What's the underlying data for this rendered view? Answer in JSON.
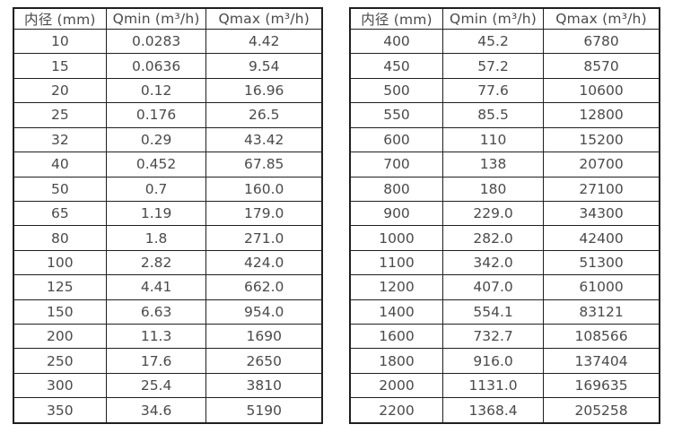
{
  "page": {
    "background": "#ffffff",
    "text_color": "#4a4a4a",
    "border_color": "#1f1f1f"
  },
  "table_left": {
    "headers": [
      "内径 (mm)",
      "Qmin (m³/h)",
      "Qmax (m³/h)"
    ],
    "rows": [
      [
        "10",
        "0.0283",
        "4.42"
      ],
      [
        "15",
        "0.0636",
        "9.54"
      ],
      [
        "20",
        "0.12",
        "16.96"
      ],
      [
        "25",
        "0.176",
        "26.5"
      ],
      [
        "32",
        "0.29",
        "43.42"
      ],
      [
        "40",
        "0.452",
        "67.85"
      ],
      [
        "50",
        "0.7",
        "160.0"
      ],
      [
        "65",
        "1.19",
        "179.0"
      ],
      [
        "80",
        "1.8",
        "271.0"
      ],
      [
        "100",
        "2.82",
        "424.0"
      ],
      [
        "125",
        "4.41",
        "662.0"
      ],
      [
        "150",
        "6.63",
        "954.0"
      ],
      [
        "200",
        "11.3",
        "1690"
      ],
      [
        "250",
        "17.6",
        "2650"
      ],
      [
        "300",
        "25.4",
        "3810"
      ],
      [
        "350",
        "34.6",
        "5190"
      ]
    ]
  },
  "table_right": {
    "headers": [
      "内径 (mm)",
      "Qmin (m³/h)",
      "Qmax (m³/h)"
    ],
    "rows": [
      [
        "400",
        "45.2",
        "6780"
      ],
      [
        "450",
        "57.2",
        "8570"
      ],
      [
        "500",
        "77.6",
        "10600"
      ],
      [
        "550",
        "85.5",
        "12800"
      ],
      [
        "600",
        "110",
        "15200"
      ],
      [
        "700",
        "138",
        "20700"
      ],
      [
        "800",
        "180",
        "27100"
      ],
      [
        "900",
        "229.0",
        "34300"
      ],
      [
        "1000",
        "282.0",
        "42400"
      ],
      [
        "1100",
        "342.0",
        "51300"
      ],
      [
        "1200",
        "407.0",
        "61000"
      ],
      [
        "1400",
        "554.1",
        "83121"
      ],
      [
        "1600",
        "732.7",
        "108566"
      ],
      [
        "1800",
        "916.0",
        "137404"
      ],
      [
        "2000",
        "1131.0",
        "169635"
      ],
      [
        "2200",
        "1368.4",
        "205258"
      ]
    ]
  }
}
